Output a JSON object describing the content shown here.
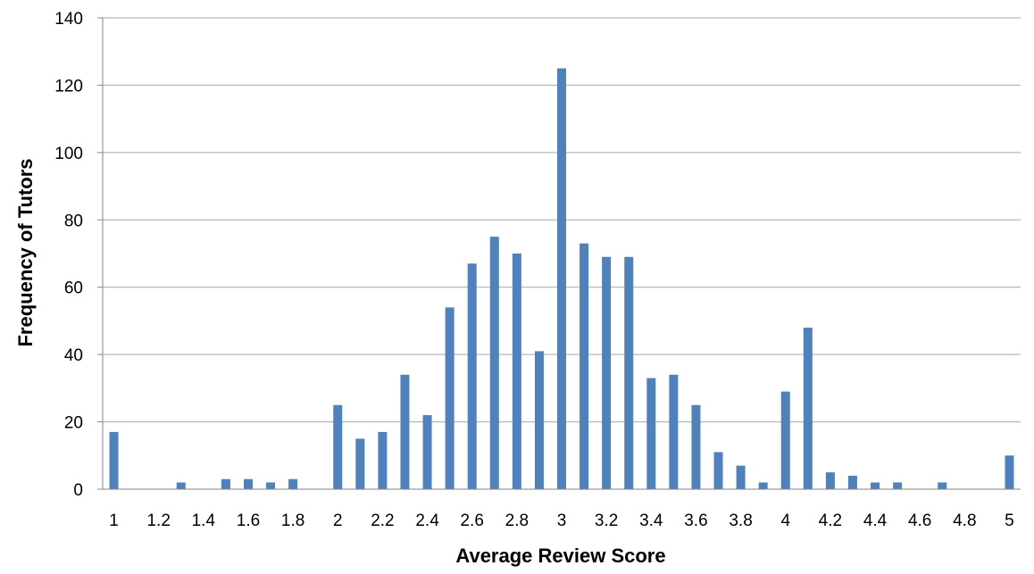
{
  "chart_data": {
    "type": "bar",
    "title": "",
    "xlabel": "Average Review Score",
    "ylabel": "Frequency of Tutors",
    "ylim": [
      0,
      140
    ],
    "yticks": [
      "0",
      "20",
      "40",
      "60",
      "80",
      "100",
      "120",
      "140"
    ],
    "grid": true,
    "bar_color": "#4F81BD",
    "grid_color": "#A6A6A6",
    "categories": [
      1,
      1.1,
      1.2,
      1.3,
      1.4,
      1.5,
      1.6,
      1.7,
      1.8,
      1.9,
      2,
      2.1,
      2.2,
      2.3,
      2.4,
      2.5,
      2.6,
      2.7,
      2.8,
      2.9,
      3,
      3.1,
      3.2,
      3.3,
      3.4,
      3.5,
      3.6,
      3.7,
      3.8,
      3.9,
      4,
      4.1,
      4.2,
      4.3,
      4.4,
      4.5,
      4.6,
      4.7,
      4.8,
      4.9,
      5
    ],
    "x_tick_labels": [
      "1",
      "1.2",
      "1.4",
      "1.6",
      "1.8",
      "2",
      "2.2",
      "2.4",
      "2.6",
      "2.8",
      "3",
      "3.2",
      "3.4",
      "3.6",
      "3.8",
      "4",
      "4.2",
      "4.4",
      "4.6",
      "4.8",
      "5"
    ],
    "values": [
      17,
      0,
      0,
      2,
      0,
      3,
      3,
      2,
      3,
      0,
      25,
      15,
      17,
      34,
      22,
      54,
      67,
      75,
      70,
      41,
      125,
      73,
      69,
      69,
      33,
      34,
      25,
      11,
      7,
      2,
      29,
      48,
      5,
      4,
      2,
      2,
      0,
      2,
      0,
      0,
      10
    ]
  }
}
